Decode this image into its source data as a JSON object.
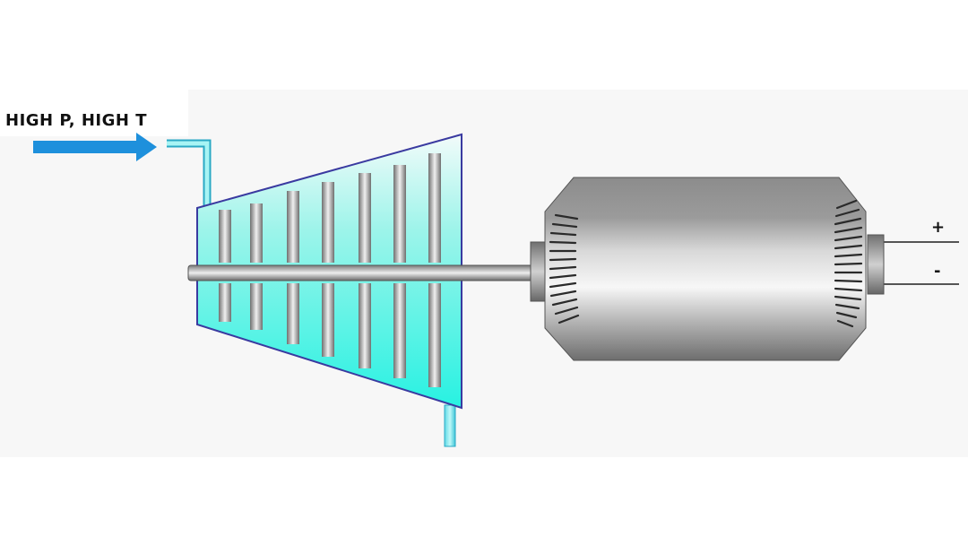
{
  "inlet_label": "HIGH P, HIGH T",
  "terminal_positive": "+",
  "terminal_negative": "-",
  "colors": {
    "flow_arrow": "#1e90dc",
    "steam_fill": "#33f0e6",
    "casing_outline": "#3a3aa0",
    "metal": "#8a8a8a",
    "panel": "#f7f7f7"
  },
  "icons": [
    "flow-arrow-icon",
    "turbine-icon",
    "generator-icon"
  ]
}
